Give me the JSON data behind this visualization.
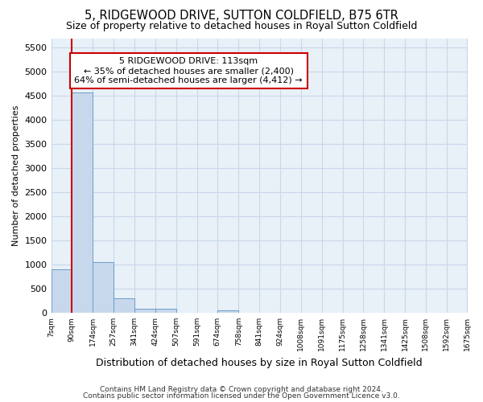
{
  "title": "5, RIDGEWOOD DRIVE, SUTTON COLDFIELD, B75 6TR",
  "subtitle": "Size of property relative to detached houses in Royal Sutton Coldfield",
  "xlabel": "Distribution of detached houses by size in Royal Sutton Coldfield",
  "ylabel": "Number of detached properties",
  "footnote1": "Contains HM Land Registry data © Crown copyright and database right 2024.",
  "footnote2": "Contains public sector information licensed under the Open Government Licence v3.0.",
  "bar_color": "#c8d8ec",
  "bar_edge_color": "#6a9ec8",
  "grid_color": "#c8d8e8",
  "background_color": "#e8f0f8",
  "annotation_box_color": "#cc0000",
  "property_label": "5 RIDGEWOOD DRIVE: 113sqm",
  "annotation_line1": "← 35% of detached houses are smaller (2,400)",
  "annotation_line2": "64% of semi-detached houses are larger (4,412) →",
  "bin_edges": [
    7,
    90,
    174,
    257,
    341,
    424,
    507,
    591,
    674,
    758,
    841,
    924,
    1008,
    1091,
    1175,
    1258,
    1341,
    1425,
    1508,
    1592,
    1675
  ],
  "bin_labels": [
    "7sqm",
    "90sqm",
    "174sqm",
    "257sqm",
    "341sqm",
    "424sqm",
    "507sqm",
    "591sqm",
    "674sqm",
    "758sqm",
    "841sqm",
    "924sqm",
    "1008sqm",
    "1091sqm",
    "1175sqm",
    "1258sqm",
    "1341sqm",
    "1425sqm",
    "1508sqm",
    "1592sqm",
    "1675sqm"
  ],
  "counts": [
    900,
    4580,
    1060,
    300,
    90,
    90,
    0,
    0,
    60,
    0,
    0,
    0,
    0,
    0,
    0,
    0,
    0,
    0,
    0,
    0
  ],
  "ylim": [
    0,
    5700
  ],
  "yticks": [
    0,
    500,
    1000,
    1500,
    2000,
    2500,
    3000,
    3500,
    4000,
    4500,
    5000,
    5500
  ],
  "vline_x": 90,
  "figsize": [
    6.0,
    5.0
  ],
  "dpi": 100
}
